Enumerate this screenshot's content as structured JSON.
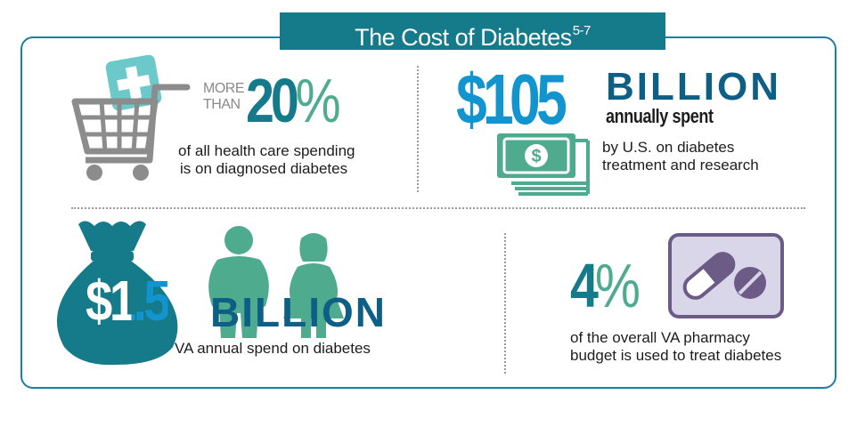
{
  "title": {
    "text": "The Cost of Diabetes",
    "superscript": "5-7"
  },
  "stat_health_spending": {
    "prefix_line1": "MORE",
    "prefix_line2": "THAN",
    "number": "20",
    "percent_sign": "%",
    "description_line1": "of all health care spending",
    "description_line2": "is on diagnosed diabetes",
    "icon": "shopping-cart-with-medical-cross"
  },
  "stat_us_spend": {
    "amount": "$105",
    "unit": "BILLION",
    "subtitle": "annually spent",
    "description_line1": "by U.S. on diabetes",
    "description_line2": "treatment and research",
    "icon": "dollar-bills-stack"
  },
  "stat_va_spend": {
    "amount": "$1.5",
    "unit": "BILLION",
    "description": "VA annual spend on diabetes",
    "icons": [
      "money-bag",
      "overweight-man",
      "overweight-woman"
    ]
  },
  "stat_pharmacy": {
    "number": "4",
    "percent_sign": "%",
    "description_line1": "of the overall VA pharmacy",
    "description_line2": "budget is used to treat diabetes",
    "icon": "pills"
  },
  "colors": {
    "teal": "#157a89",
    "green": "#4eab8d",
    "blue": "#1294cf",
    "navy": "#0d5f86",
    "mint": "#6cc9c9",
    "purple": "#6b5b86",
    "lavender": "#d9d6ea"
  }
}
